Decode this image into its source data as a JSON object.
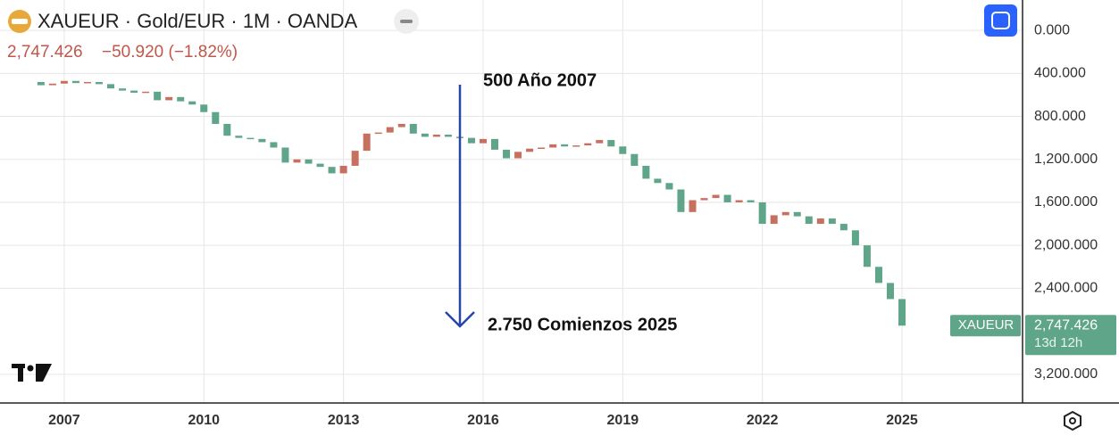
{
  "header": {
    "symbol": "XAUEUR · Gold/EUR · 1M · OANDA",
    "price": "2,747.426",
    "change": "−50.920 (−1.82%)"
  },
  "chart_data": {
    "type": "candlestick",
    "series": [
      {
        "name": "XAUEUR",
        "up_color": "#5fa58a",
        "down_color": "#c8705f",
        "x": [
          2006.25,
          2006.5,
          2006.75,
          2007,
          2007.25,
          2007.5,
          2007.75,
          2008,
          2008.25,
          2008.5,
          2008.75,
          2009,
          2009.25,
          2009.5,
          2009.75,
          2010,
          2010.25,
          2010.5,
          2010.75,
          2011,
          2011.25,
          2011.5,
          2011.75,
          2012,
          2012.25,
          2012.5,
          2012.75,
          2013,
          2013.25,
          2013.5,
          2013.75,
          2014,
          2014.25,
          2014.5,
          2014.75,
          2015,
          2015.25,
          2015.5,
          2015.75,
          2016,
          2016.25,
          2016.5,
          2016.75,
          2017,
          2017.25,
          2017.5,
          2017.75,
          2018,
          2018.25,
          2018.5,
          2018.75,
          2019,
          2019.25,
          2019.5,
          2019.75,
          2020,
          2020.25,
          2020.5,
          2020.75,
          2021,
          2021.25,
          2021.5,
          2021.75,
          2022,
          2022.25,
          2022.5,
          2022.75,
          2023,
          2023.25,
          2023.5,
          2023.75,
          2024,
          2024.25,
          2024.5,
          2024.75,
          2025
        ],
        "values": [
          480,
          510,
          495,
          470,
          490,
          480,
          500,
          540,
          560,
          580,
          570,
          650,
          620,
          660,
          690,
          760,
          870,
          980,
          1000,
          1010,
          1040,
          1090,
          1230,
          1200,
          1240,
          1270,
          1330,
          1260,
          1120,
          960,
          950,
          900,
          870,
          960,
          990,
          970,
          990,
          1000,
          1050,
          1010,
          1110,
          1190,
          1130,
          1100,
          1090,
          1060,
          1080,
          1070,
          1050,
          1020,
          1080,
          1150,
          1260,
          1380,
          1420,
          1480,
          1690,
          1580,
          1560,
          1530,
          1600,
          1580,
          1600,
          1800,
          1720,
          1690,
          1730,
          1800,
          1750,
          1800,
          1860,
          2000,
          2200,
          2350,
          2500,
          2747.426
        ]
      }
    ],
    "last_price_label": "2,747.426",
    "countdown": "13d 12h",
    "xlim": [
      2005.62,
      2027.59
    ],
    "xticks": [
      2007,
      2010,
      2013,
      2016,
      2019,
      2022,
      2025
    ],
    "ylim": [
      3467,
      -283
    ],
    "yticks": [
      {
        "value": 0,
        "label": "0.000"
      },
      {
        "value": 400,
        "label": "400.000"
      },
      {
        "value": 800,
        "label": "800.000"
      },
      {
        "value": 1200,
        "label": "1,200.000"
      },
      {
        "value": 1600,
        "label": "1,600.000"
      },
      {
        "value": 2000,
        "label": "2,000.000"
      },
      {
        "value": 2400,
        "label": "2,400.000"
      },
      {
        "value": 3200,
        "label": "3,200.000"
      }
    ],
    "grid": true,
    "annotations": [
      "500  Año 2007",
      "2.750  Comienzos 2025"
    ]
  }
}
